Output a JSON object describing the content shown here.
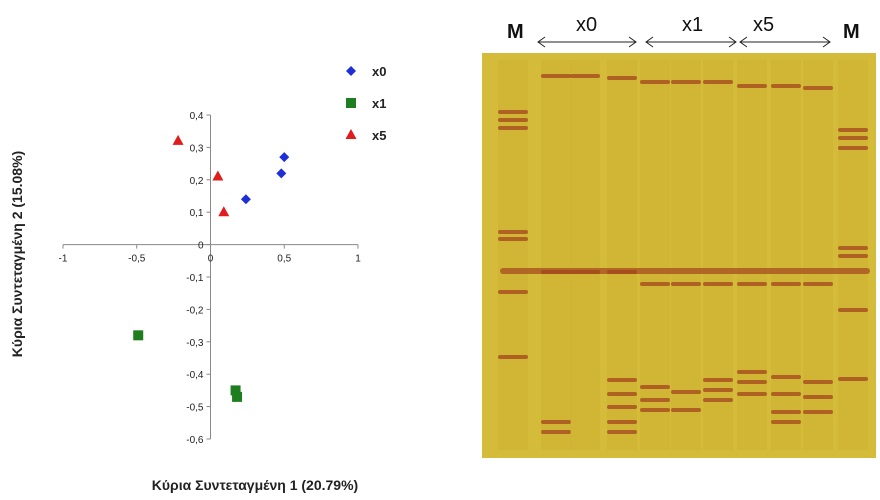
{
  "chart_data": {
    "type": "scatter",
    "xlabel": "Κύρια Συντεταγμένη 1 (20.79%)",
    "ylabel": "Κύρια Συντεταγμένη 2 (15.08%)",
    "xlim": [
      -1,
      1
    ],
    "ylim": [
      -0.6,
      0.4
    ],
    "x_ticks": [
      "-1",
      "-0,5",
      "0",
      "0,5",
      "1"
    ],
    "y_ticks": [
      "0,4",
      "0,3",
      "0,2",
      "0,1",
      "0",
      "-0,1",
      "-0,2",
      "-0,3",
      "-0,4",
      "-0,5",
      "-0,6"
    ],
    "grid": false,
    "legend_position": "top-right",
    "series": [
      {
        "name": "x0",
        "marker": "diamond",
        "color": "#1f2fd6",
        "points": [
          [
            0.24,
            0.14
          ],
          [
            0.48,
            0.22
          ],
          [
            0.5,
            0.27
          ]
        ]
      },
      {
        "name": "x1",
        "marker": "square",
        "color": "#1e7d1e",
        "points": [
          [
            -0.49,
            -0.28
          ],
          [
            0.17,
            -0.45
          ],
          [
            0.18,
            -0.47
          ]
        ]
      },
      {
        "name": "x5",
        "marker": "triangle",
        "color": "#e01c1c",
        "points": [
          [
            -0.22,
            0.32
          ],
          [
            0.05,
            0.21
          ],
          [
            0.09,
            0.1
          ]
        ]
      }
    ]
  },
  "gel_image": {
    "labels": [
      "M",
      "x0",
      "x1",
      "x5",
      "M"
    ],
    "background_color": "#d9c23c",
    "band_color": "#a3441d"
  }
}
